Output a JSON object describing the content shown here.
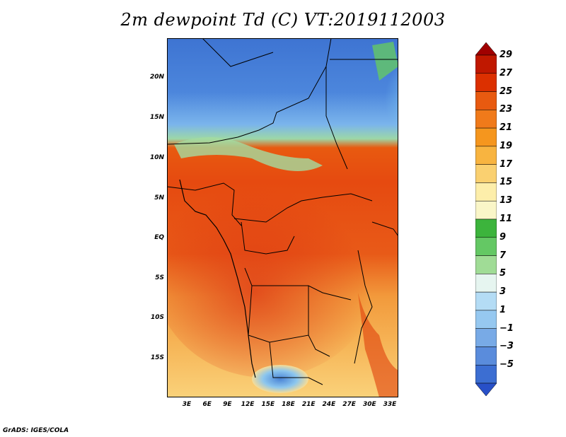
{
  "title": "2m dewpoint Td (C) VT:2019112003",
  "footer": "GrADS: IGES/COLA",
  "map": {
    "lat_ticks": [
      "20N",
      "15N",
      "10N",
      "5N",
      "EQ",
      "5S",
      "10S",
      "15S"
    ],
    "lon_ticks": [
      "3E",
      "6E",
      "9E",
      "12E",
      "15E",
      "18E",
      "21E",
      "24E",
      "27E",
      "30E",
      "33E"
    ]
  },
  "colorbar": {
    "labels": [
      "29",
      "27",
      "25",
      "23",
      "21",
      "19",
      "17",
      "15",
      "13",
      "11",
      "9",
      "7",
      "5",
      "3",
      "1",
      "−1",
      "−3",
      "−5"
    ],
    "colors": [
      "#a00000",
      "#c01800",
      "#dc3000",
      "#e85a10",
      "#f07a1a",
      "#f5961e",
      "#f8b440",
      "#fad070",
      "#fdeeaa",
      "#faf6c8",
      "#3cb43c",
      "#64c864",
      "#a0dc96",
      "#e6f5f0",
      "#b4dcf5",
      "#96c8f0",
      "#78aae6",
      "#5a8cdc",
      "#3c6ed2",
      "#2850c8"
    ]
  }
}
